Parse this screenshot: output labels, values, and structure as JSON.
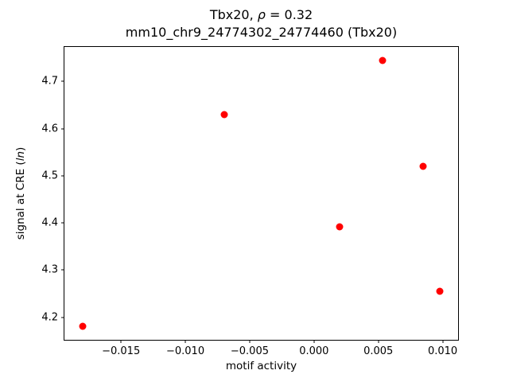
{
  "chart_data": {
    "type": "scatter",
    "title": "Tbx20, ρ = 0.32",
    "title_parts": {
      "prefix": "Tbx20, ",
      "italic": "ρ",
      "suffix": " = 0.32"
    },
    "subtitle": "mm10_chr9_24774302_24774460 (Tbx20)",
    "xlabel": "motif activity",
    "ylabel": "signal at CRE (ln)",
    "ylabel_parts": {
      "prefix": "signal at CRE (",
      "italic": "ln",
      "suffix": ")"
    },
    "marker_color": "#ff0000",
    "grid": false,
    "legend": false,
    "xlim": [
      -0.0194,
      0.0112
    ],
    "ylim": [
      4.152,
      4.773
    ],
    "xticks": [
      {
        "value": -0.015,
        "label": "−0.015"
      },
      {
        "value": -0.01,
        "label": "−0.010"
      },
      {
        "value": -0.005,
        "label": "−0.005"
      },
      {
        "value": 0.0,
        "label": "0.000"
      },
      {
        "value": 0.005,
        "label": "0.005"
      },
      {
        "value": 0.01,
        "label": "0.010"
      }
    ],
    "yticks": [
      {
        "value": 4.2,
        "label": "4.2"
      },
      {
        "value": 4.3,
        "label": "4.3"
      },
      {
        "value": 4.4,
        "label": "4.4"
      },
      {
        "value": 4.5,
        "label": "4.5"
      },
      {
        "value": 4.6,
        "label": "4.6"
      },
      {
        "value": 4.7,
        "label": "4.7"
      }
    ],
    "points": [
      {
        "x": -0.018,
        "y": 4.18
      },
      {
        "x": -0.007,
        "y": 4.63
      },
      {
        "x": 0.002,
        "y": 4.392
      },
      {
        "x": 0.0053,
        "y": 4.745
      },
      {
        "x": 0.0085,
        "y": 4.52
      },
      {
        "x": 0.0098,
        "y": 4.255
      }
    ]
  }
}
